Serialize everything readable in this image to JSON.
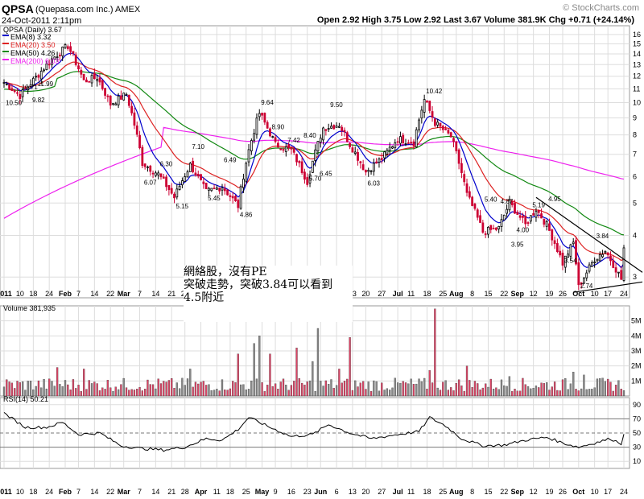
{
  "header": {
    "symbol": "QPSA",
    "company": "(Quepasa.com Inc.)  AMEX",
    "datetime": "24-Oct-2011 2:11pm",
    "quote": "Open 2.92  High 3.75  Low 2.92  Last 3.67  Volume 381.9K  Chg +0.71 (+24.14%)",
    "brand": "© StockCharts.com"
  },
  "legend": {
    "main": "QPSA (Daily) 3.67",
    "ema8": "EMA(8) 3.32",
    "ema20": "EMA(20) 3.50",
    "ema50": "EMA(50) 4.26",
    "ema200": "EMA(200) 6.03",
    "volume": "Volume 381,935",
    "rsi": "RSI(14) 50.21"
  },
  "note": {
    "line1": "網絡股，沒有PE",
    "line2": "突破走勢，突破3.84可以看到",
    "line3": "4.5附近"
  },
  "colors": {
    "up": "#000000",
    "down": "#cc0033",
    "ema8": "#0000cc",
    "ema20": "#dd2222",
    "ema50": "#118811",
    "ema200": "#ee22ee",
    "vol_up": "#888888",
    "vol_down": "#dd4466"
  },
  "chart_data": [
    {
      "type": "candlestick",
      "scale": "log",
      "ylim": [
        2.6,
        17
      ],
      "y_ticks": [
        3,
        4,
        5,
        6,
        7,
        8,
        9,
        10,
        11,
        12,
        13,
        14,
        15,
        16
      ],
      "x_labels": [
        "2011",
        "10",
        "18",
        "24",
        "Feb",
        "7",
        "14",
        "22",
        "Mar",
        "7",
        "14",
        "21",
        "28",
        "Apr",
        "11",
        "18",
        "25",
        "May",
        "9",
        "16",
        "23",
        "Jun",
        "6",
        "13",
        "20",
        "27",
        "Jul",
        "11",
        "18",
        "25",
        "Aug",
        "8",
        "15",
        "22",
        "Sep",
        "12",
        "19",
        "26",
        "Oct",
        "10",
        "17",
        "24"
      ],
      "price_labels": [
        "10.50",
        "10.71",
        "11.99",
        "9.82",
        "6.07",
        "6.30",
        "5.15",
        "7.10",
        "5.45",
        "6.49",
        "4.86",
        "9.64",
        "8.90",
        "7.42",
        "8.40",
        "5.70",
        "6.45",
        "9.50",
        "6.03",
        "10.42",
        "5.40",
        "4.87",
        "3.95",
        "4.00",
        "5.19",
        "4.95",
        "3.54",
        "3.84",
        "2.74"
      ],
      "annotated_prices": [
        10.5,
        10.71,
        11.99,
        9.82,
        6.07,
        6.3,
        5.15,
        7.1,
        5.45,
        6.49,
        4.86,
        9.64,
        8.9,
        7.42,
        8.4,
        5.7,
        6.45,
        9.5,
        6.03,
        10.42,
        5.4,
        4.87,
        3.95,
        4.0,
        5.19,
        4.95,
        3.54,
        3.84,
        2.74
      ],
      "anchors": [
        [
          0,
          11.5
        ],
        [
          6,
          10.5
        ],
        [
          12,
          11.9
        ],
        [
          18,
          13.5
        ],
        [
          24,
          14.8
        ],
        [
          30,
          11.6
        ],
        [
          35,
          11.9
        ],
        [
          40,
          9.9
        ],
        [
          46,
          10.6
        ],
        [
          52,
          6.6
        ],
        [
          58,
          6.1
        ],
        [
          64,
          5.2
        ],
        [
          70,
          6.5
        ],
        [
          76,
          5.4
        ],
        [
          82,
          5.6
        ],
        [
          88,
          4.9
        ],
        [
          92,
          7.2
        ],
        [
          96,
          9.3
        ],
        [
          102,
          7.5
        ],
        [
          108,
          7.2
        ],
        [
          114,
          5.8
        ],
        [
          120,
          8.4
        ],
        [
          126,
          8.6
        ],
        [
          130,
          7.5
        ],
        [
          136,
          6.2
        ],
        [
          142,
          6.8
        ],
        [
          148,
          7.8
        ],
        [
          154,
          7.6
        ],
        [
          158,
          10.2
        ],
        [
          162,
          8.7
        ],
        [
          168,
          7.9
        ],
        [
          174,
          5.3
        ],
        [
          180,
          4.1
        ],
        [
          186,
          4.2
        ],
        [
          190,
          5.0
        ],
        [
          196,
          4.3
        ],
        [
          200,
          4.8
        ],
        [
          204,
          4.3
        ],
        [
          210,
          3.3
        ],
        [
          214,
          3.8
        ],
        [
          216,
          2.8
        ],
        [
          222,
          3.4
        ],
        [
          226,
          3.6
        ],
        [
          232,
          2.96
        ],
        [
          233,
          3.67
        ]
      ],
      "last": 3.67
    },
    {
      "type": "bar",
      "name": "Volume",
      "ylim": [
        0,
        6
      ],
      "y_tick_labels": [
        "1M",
        "2M",
        "3M",
        "4M",
        "5M"
      ],
      "spikes": [
        [
          0,
          0.6
        ],
        [
          20,
          1.9
        ],
        [
          30,
          1.8
        ],
        [
          70,
          1.8
        ],
        [
          88,
          2.8
        ],
        [
          94,
          3.5
        ],
        [
          96,
          4.0
        ],
        [
          100,
          2.8
        ],
        [
          110,
          3.2
        ],
        [
          116,
          2.3
        ],
        [
          118,
          4.5
        ],
        [
          126,
          1.8
        ],
        [
          130,
          3.9
        ],
        [
          160,
          1.7
        ],
        [
          162,
          5.8
        ],
        [
          174,
          2.0
        ],
        [
          190,
          1.3
        ],
        [
          214,
          1.6
        ],
        [
          218,
          1.4
        ]
      ]
    },
    {
      "type": "line",
      "name": "RSI(14)",
      "ylim": [
        0,
        100
      ],
      "y_ticks": [
        10,
        30,
        50,
        70,
        90
      ],
      "anchors": [
        [
          0,
          78
        ],
        [
          8,
          58
        ],
        [
          16,
          58
        ],
        [
          22,
          65
        ],
        [
          28,
          48
        ],
        [
          36,
          50
        ],
        [
          44,
          32
        ],
        [
          52,
          28
        ],
        [
          60,
          26
        ],
        [
          68,
          30
        ],
        [
          76,
          42
        ],
        [
          82,
          40
        ],
        [
          88,
          55
        ],
        [
          92,
          72
        ],
        [
          100,
          58
        ],
        [
          108,
          45
        ],
        [
          116,
          48
        ],
        [
          122,
          62
        ],
        [
          130,
          50
        ],
        [
          138,
          42
        ],
        [
          148,
          48
        ],
        [
          156,
          52
        ],
        [
          160,
          72
        ],
        [
          166,
          60
        ],
        [
          172,
          42
        ],
        [
          180,
          32
        ],
        [
          188,
          33
        ],
        [
          196,
          40
        ],
        [
          204,
          44
        ],
        [
          210,
          36
        ],
        [
          216,
          30
        ],
        [
          222,
          36
        ],
        [
          228,
          42
        ],
        [
          232,
          35
        ],
        [
          233,
          50.21
        ]
      ]
    }
  ]
}
